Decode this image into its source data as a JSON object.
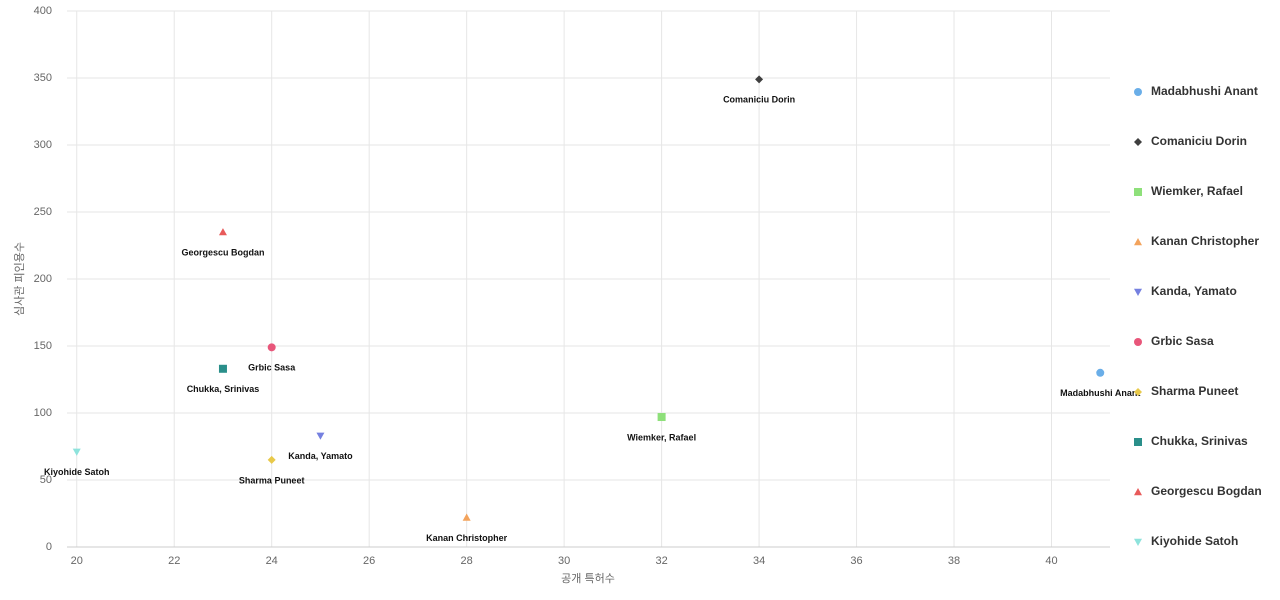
{
  "chart_data": {
    "type": "scatter",
    "xlabel": "공개 특허수",
    "ylabel": "심사관 피인용수",
    "xlim": [
      19.8,
      41.2
    ],
    "xticks": [
      20,
      22,
      24,
      26,
      28,
      30,
      32,
      34,
      36,
      38,
      40
    ],
    "ylim": [
      0,
      400
    ],
    "yticks": [
      0,
      50,
      100,
      150,
      200,
      250,
      300,
      350,
      400
    ],
    "grid": true,
    "legend": "right",
    "series": [
      {
        "name": "Madabhushi Anant",
        "color": "#6aaee8",
        "marker": "circle",
        "x": [
          41
        ],
        "y": [
          130
        ]
      },
      {
        "name": "Comaniciu Dorin",
        "color": "#3f3f3f",
        "marker": "diamond",
        "x": [
          34
        ],
        "y": [
          349
        ]
      },
      {
        "name": "Wiemker, Rafael",
        "color": "#8ee07a",
        "marker": "square",
        "x": [
          32
        ],
        "y": [
          97
        ]
      },
      {
        "name": "Kanan Christopher",
        "color": "#f3a35c",
        "marker": "triangle",
        "x": [
          28
        ],
        "y": [
          22
        ]
      },
      {
        "name": "Kanda, Yamato",
        "color": "#7580e0",
        "marker": "triangle-down",
        "x": [
          25
        ],
        "y": [
          83
        ]
      },
      {
        "name": "Grbic Sasa",
        "color": "#e8567a",
        "marker": "circle",
        "x": [
          24
        ],
        "y": [
          149
        ]
      },
      {
        "name": "Sharma Puneet",
        "color": "#e8c94a",
        "marker": "diamond",
        "x": [
          24
        ],
        "y": [
          65
        ]
      },
      {
        "name": "Chukka, Srinivas",
        "color": "#2a8f8a",
        "marker": "square",
        "x": [
          23
        ],
        "y": [
          133
        ]
      },
      {
        "name": "Georgescu Bogdan",
        "color": "#e85a5a",
        "marker": "triangle",
        "x": [
          23
        ],
        "y": [
          235
        ]
      },
      {
        "name": "Kiyohide Satoh",
        "color": "#8ee3dc",
        "marker": "triangle-down",
        "x": [
          20
        ],
        "y": [
          71
        ]
      }
    ]
  }
}
